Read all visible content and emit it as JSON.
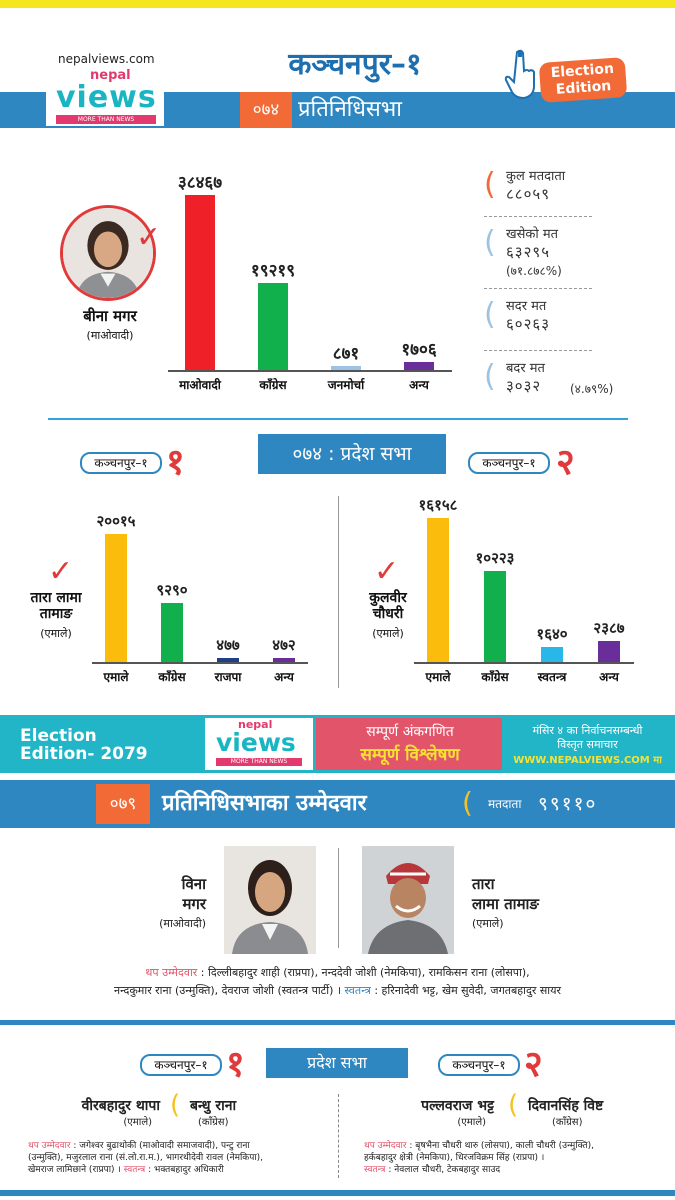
{
  "header": {
    "site_url": "nepalviews.com",
    "logo_nepal": "nepal",
    "logo_views": "views",
    "logo_tagline": "MORE THAN NEWS",
    "title": "कञ्चनपुर–१",
    "year": "०७४",
    "section_label": "प्रतिनिधिसभा",
    "edition_badge_line1": "Election",
    "edition_badge_line2": "Edition"
  },
  "hor_074": {
    "winner_name": "बीना मगर",
    "winner_party": "(माओवादी)",
    "chart_data": {
      "type": "bar",
      "categories": [
        "माओवादी",
        "काँग्रेस",
        "जनमोर्चा",
        "अन्य"
      ],
      "values": [
        38467,
        19219,
        871,
        1706
      ],
      "value_labels": [
        "३८४६७",
        "१९२१९",
        "८७१",
        "१७०६"
      ],
      "colors": [
        "#ef2028",
        "#12b04c",
        "#9cc3e4",
        "#6a2e9a"
      ]
    },
    "stats": [
      {
        "label": "कुल मतदाता",
        "value": "८८०५९",
        "note": ""
      },
      {
        "label": "खसेको मत",
        "value": "६३२९५",
        "note": "(७१.८७८%)"
      },
      {
        "label": "सदर मत",
        "value": "६०२६३",
        "note": ""
      },
      {
        "label": "बदर मत",
        "value": "३०३२",
        "note": "(४.७९%)"
      }
    ]
  },
  "province_074": {
    "label": "०७४ : प्रदेश सभा",
    "left": {
      "district": "कञ्चनपुर–१",
      "number": "१",
      "winner_name_line1": "तारा लामा",
      "winner_name_line2": "तामाङ",
      "winner_party": "(एमाले)",
      "chart_data": {
        "type": "bar",
        "categories": [
          "एमाले",
          "काँग्रेस",
          "राजपा",
          "अन्य"
        ],
        "values": [
          20015,
          9290,
          477,
          472
        ],
        "value_labels": [
          "२००१५",
          "९२९०",
          "४७७",
          "४७२"
        ],
        "colors": [
          "#fbbc0b",
          "#12b04c",
          "#1f3f8a",
          "#6a2e9a"
        ]
      }
    },
    "right": {
      "district": "कञ्चनपुर–१",
      "number": "२",
      "winner_name_line1": "कुलवीर",
      "winner_name_line2": "चौधरी",
      "winner_party": "(एमाले)",
      "chart_data": {
        "type": "bar",
        "categories": [
          "एमाले",
          "काँग्रेस",
          "स्वतन्त्र",
          "अन्य"
        ],
        "values": [
          16158,
          10223,
          1640,
          2387
        ],
        "value_labels": [
          "१६१५८",
          "१०२२३",
          "१६४०",
          "२३८७"
        ],
        "colors": [
          "#fbbc0b",
          "#12b04c",
          "#29b6e8",
          "#6a2e9a"
        ]
      }
    }
  },
  "banner": {
    "edition_line1": "Election",
    "edition_line2": "Edition- 2079",
    "logo_nepal": "nepal",
    "logo_views": "views",
    "logo_tagline": "MORE THAN NEWS",
    "red_line1": "सम्पूर्ण अंकगणित",
    "red_line2": "सम्पूर्ण विश्लेषण",
    "right_line1": "मंसिर ४ का निर्वाचनसम्बन्धी",
    "right_line2": "विस्तृत समाचार",
    "right_line3": "WWW.NEPALVIEWS.COM मा"
  },
  "hor_079": {
    "year": "०७९",
    "label": "प्रतिनिधिसभाका उम्मेदवार",
    "voters_label": "मतदाता",
    "voters_value": "९९११०",
    "cand1_line1": "विना",
    "cand1_line2": "मगर",
    "cand1_party": "(माओवादी)",
    "cand2_line1": "तारा",
    "cand2_line2": "लामा तामाङ",
    "cand2_party": "(एमाले)",
    "others_label": "थप उम्मेदवार",
    "others_text1": ": दिल्लीबहादुर शाही (राप्रपा), नन्ददेवी जोशी (नेमकिपा), रामकिसन राना (लोसपा),",
    "others_text2": "नन्दकुमार राना (उन्मुक्ति), देवराज जोशी (स्वतन्त्र पार्टी) ।",
    "independent_label": "स्वतन्त्र",
    "independent_text": ": हरिनादेवी भट्ट, खेम सुवेदी, जगतबहादुर सायर"
  },
  "province_079": {
    "label": "प्रदेश सभा",
    "left": {
      "district": "कञ्चनपुर–१",
      "number": "१",
      "cand1_name": "वीरबहादुर थापा",
      "cand1_party": "(एमाले)",
      "cand2_name": "बन्धु राना",
      "cand2_party": "(काँग्रेस)",
      "others_label": "थप उम्मेदवार",
      "others_line1": ": जगेश्वर बुढाथोकी (माओवादी समाजवादी), पन्टु राना",
      "others_line2": "(उन्मुक्ति), मजुरलाल राना (सं.लो.रा.म.), भागरथीदेवी रावल (नेमकिपा),",
      "others_line3": "खेमराज लामिछाने (राप्रपा) ।",
      "independent_label": "स्वतन्त्र",
      "independent_text": ": भक्तबहादुर अधिकारी"
    },
    "right": {
      "district": "कञ्चनपुर–१",
      "number": "२",
      "cand1_name": "पल्लवराज भट्ट",
      "cand1_party": "(एमाले)",
      "cand2_name": "दिवानसिंह विष्ट",
      "cand2_party": "(काँग्रेस)",
      "others_label": "थप उम्मेदवार",
      "others_line1": ": बृषभैना चौधरी थारु (लोसपा), काली चौधरी (उन्मुक्ति),",
      "others_line2": "हर्कबहादुर क्षेत्री (नेमकिपा), धिरजविक्रम सिंह (राप्रपा) ।",
      "independent_label": "स्वतन्त्र",
      "independent_text": ": नेवलाल चौधरी, टेकबहादुर साउद"
    }
  }
}
